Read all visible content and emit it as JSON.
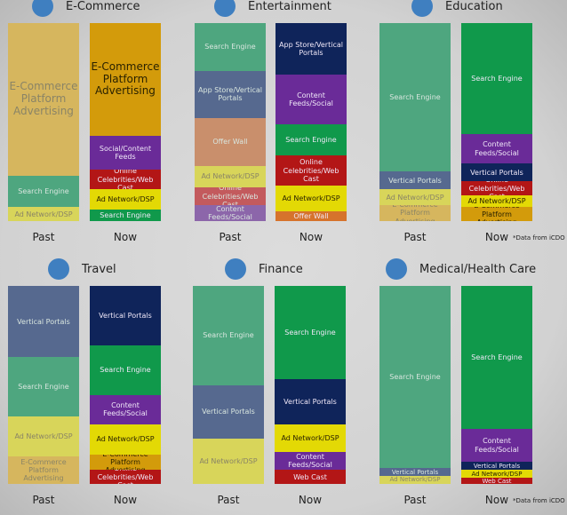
{
  "chart_data": [
    {
      "type": "bar",
      "title": "E-Commerce",
      "categories": [
        "Past",
        "Now"
      ],
      "unit": "percent (estimated)",
      "bars": [
        {
          "label": "Past",
          "segments": [
            {
              "name": "E-Commerce Platform Advertising",
              "value": 77
            },
            {
              "name": "Search Engine",
              "value": 16
            },
            {
              "name": "Ad Network/DSP",
              "value": 7
            }
          ]
        },
        {
          "label": "Now",
          "segments": [
            {
              "name": "E-Commerce Platform Advertising",
              "value": 57
            },
            {
              "name": "Social/Content Feeds",
              "value": 17
            },
            {
              "name": "Online Celebrities/Web Cast",
              "value": 10
            },
            {
              "name": "Ad Network/DSP",
              "value": 10
            },
            {
              "name": "Search Engine",
              "value": 6
            }
          ]
        }
      ]
    },
    {
      "type": "bar",
      "title": "Entertainment",
      "categories": [
        "Past",
        "Now"
      ],
      "bars": [
        {
          "label": "Past",
          "segments": [
            {
              "name": "Search Engine",
              "value": 24
            },
            {
              "name": "App Store/Vertical Portals",
              "value": 24
            },
            {
              "name": "Offer Wall",
              "value": 24
            },
            {
              "name": "Ad Network/DSP",
              "value": 11
            },
            {
              "name": "Online Celebrities/Web Cast",
              "value": 9
            },
            {
              "name": "Content Feeds/Social",
              "value": 8
            }
          ]
        },
        {
          "label": "Now",
          "segments": [
            {
              "name": "App Store/Vertical Portals",
              "value": 26
            },
            {
              "name": "Content Feeds/Social",
              "value": 25
            },
            {
              "name": "Search Engine",
              "value": 16
            },
            {
              "name": "Online Celebrities/Web Cast",
              "value": 15
            },
            {
              "name": "Ad Network/DSP",
              "value": 13
            },
            {
              "name": "Offer Wall",
              "value": 5
            }
          ]
        }
      ]
    },
    {
      "type": "bar",
      "title": "Education",
      "categories": [
        "Past",
        "Now"
      ],
      "bars": [
        {
          "label": "Past",
          "segments": [
            {
              "name": "Search Engine",
              "value": 75
            },
            {
              "name": "Vertical Portals",
              "value": 9
            },
            {
              "name": "Ad Network/DSP",
              "value": 8
            },
            {
              "name": "E-Commerce Platform Advertising",
              "value": 8
            }
          ]
        },
        {
          "label": "Now",
          "segments": [
            {
              "name": "Search Engine",
              "value": 56
            },
            {
              "name": "Content Feeds/Social",
              "value": 15
            },
            {
              "name": "Vertical Portals",
              "value": 9
            },
            {
              "name": "Online Celebrities/Web Cast",
              "value": 7
            },
            {
              "name": "Ad Network/DSP",
              "value": 6
            },
            {
              "name": "E-Commerce Platform Advertising",
              "value": 7
            }
          ]
        }
      ]
    },
    {
      "type": "bar",
      "title": "Travel",
      "categories": [
        "Past",
        "Now"
      ],
      "bars": [
        {
          "label": "Past",
          "segments": [
            {
              "name": "Vertical Portals",
              "value": 36
            },
            {
              "name": "Search Engine",
              "value": 30
            },
            {
              "name": "Ad Network/DSP",
              "value": 20
            },
            {
              "name": "E-Commerce Platform Advertising",
              "value": 14
            }
          ]
        },
        {
          "label": "Now",
          "segments": [
            {
              "name": "Vertical Portals",
              "value": 30
            },
            {
              "name": "Search Engine",
              "value": 25
            },
            {
              "name": "Content Feeds/Social",
              "value": 15
            },
            {
              "name": "Ad Network/DSP",
              "value": 15
            },
            {
              "name": "E-Commerce Platform Advertising",
              "value": 8
            },
            {
              "name": "Online Celebrities/Web Cast",
              "value": 7
            }
          ]
        }
      ]
    },
    {
      "type": "bar",
      "title": "Finance",
      "categories": [
        "Past",
        "Now"
      ],
      "bars": [
        {
          "label": "Past",
          "segments": [
            {
              "name": "Search Engine",
              "value": 50
            },
            {
              "name": "Vertical Portals",
              "value": 27
            },
            {
              "name": "Ad Network/DSP",
              "value": 23
            }
          ]
        },
        {
          "label": "Now",
          "segments": [
            {
              "name": "Search Engine",
              "value": 47
            },
            {
              "name": "Vertical Portals",
              "value": 23
            },
            {
              "name": "Ad Network/DSP",
              "value": 14
            },
            {
              "name": "Content Feeds/Social",
              "value": 9
            },
            {
              "name": "Web Cast",
              "value": 7
            }
          ]
        }
      ]
    },
    {
      "type": "bar",
      "title": "Medical/Health Care",
      "categories": [
        "Past",
        "Now"
      ],
      "bars": [
        {
          "label": "Past",
          "segments": [
            {
              "name": "Search Engine",
              "value": 92
            },
            {
              "name": "Vertical Portals",
              "value": 4
            },
            {
              "name": "Ad Network/DSP",
              "value": 4
            }
          ]
        },
        {
          "label": "Now",
          "segments": [
            {
              "name": "Search Engine",
              "value": 72
            },
            {
              "name": "Content Feeds/Social",
              "value": 17
            },
            {
              "name": "Vertical Portals",
              "value": 4
            },
            {
              "name": "Ad Network/DSP",
              "value": 4
            },
            {
              "name": "Web Cast",
              "value": 3
            }
          ]
        }
      ]
    }
  ],
  "footnote": "*Data from iCDO",
  "colors": {
    "past": {
      "E-Commerce Platform Advertising": "#d6b65e",
      "Search Engine": "#4ea67f",
      "Ad Network/DSP": "#d8d55a",
      "App Store/Vertical Portals": "#56698f",
      "Vertical Portals": "#56698f",
      "Offer Wall": "#c98f6c",
      "Online Celebrities/Web Cast": "#c35a5d",
      "Content Feeds/Social": "#8c66aa"
    },
    "now": {
      "E-Commerce Platform Advertising": "#d39b0b",
      "Social/Content Feeds": "#6a2b98",
      "Content Feeds/Social": "#6a2b98",
      "Online Celebrities/Web Cast": "#b31616",
      "Web Cast": "#b31616",
      "Ad Network/DSP": "#e3d905",
      "Search Engine": "#10994b",
      "App Store/Vertical Portals": "#0f245a",
      "Vertical Portals": "#0f245a",
      "Offer Wall": "#d6732c"
    },
    "marker": "#3f7fc0"
  }
}
